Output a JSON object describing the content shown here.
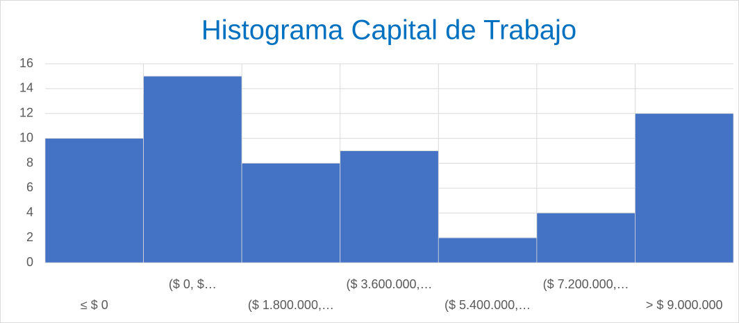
{
  "chart_data": {
    "type": "bar",
    "title": "Histograma Capital de Trabajo",
    "categories": [
      "≤ $ 0",
      "($ 0, $…",
      "($ 1.800.000,…",
      "($ 3.600.000,…",
      "($ 5.400.000,…",
      "($ 7.200.000,…",
      "> $ 9.000.000"
    ],
    "values": [
      10,
      15,
      8,
      9,
      2,
      4,
      12
    ],
    "color": "#4472c4",
    "ylim": [
      0,
      16
    ],
    "yticks": [
      0,
      2,
      4,
      6,
      8,
      10,
      12,
      14,
      16
    ],
    "grid": true
  }
}
